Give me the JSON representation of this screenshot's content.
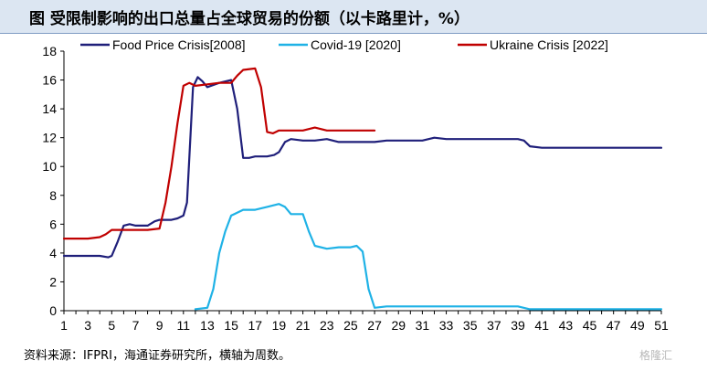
{
  "title": "图 受限制影响的出口总量占全球贸易的份额（以卡路里计，%）",
  "source": "资料来源：IFPRI，海通证券研究所，横轴为周数。",
  "watermark": "格隆汇",
  "chart_data": {
    "type": "line",
    "xlim": [
      1,
      51
    ],
    "ylim": [
      0,
      18
    ],
    "x_ticks": [
      1,
      3,
      5,
      7,
      9,
      11,
      13,
      15,
      17,
      19,
      21,
      23,
      25,
      27,
      29,
      31,
      33,
      35,
      37,
      39,
      41,
      43,
      45,
      47,
      49,
      51
    ],
    "y_ticks": [
      0,
      2,
      4,
      6,
      8,
      10,
      12,
      14,
      16,
      18
    ],
    "legend_position": "top",
    "grid": false,
    "series": [
      {
        "name": "Food Price Crisis[2008]",
        "color": "#1f1f7a",
        "points": [
          [
            1,
            3.8
          ],
          [
            2,
            3.8
          ],
          [
            3,
            3.8
          ],
          [
            4,
            3.8
          ],
          [
            4.7,
            3.7
          ],
          [
            5,
            3.8
          ],
          [
            5.5,
            4.8
          ],
          [
            6,
            5.9
          ],
          [
            6.5,
            6.0
          ],
          [
            7,
            5.9
          ],
          [
            8,
            5.9
          ],
          [
            8.6,
            6.2
          ],
          [
            9,
            6.3
          ],
          [
            10,
            6.3
          ],
          [
            10.5,
            6.4
          ],
          [
            11,
            6.6
          ],
          [
            11.3,
            7.5
          ],
          [
            11.8,
            15.5
          ],
          [
            12.2,
            16.2
          ],
          [
            12.6,
            15.9
          ],
          [
            13,
            15.5
          ],
          [
            14,
            15.8
          ],
          [
            15,
            16.0
          ],
          [
            15.5,
            14.0
          ],
          [
            16,
            10.6
          ],
          [
            16.5,
            10.6
          ],
          [
            17,
            10.7
          ],
          [
            18,
            10.7
          ],
          [
            18.6,
            10.8
          ],
          [
            19,
            11.0
          ],
          [
            19.5,
            11.7
          ],
          [
            20,
            11.9
          ],
          [
            21,
            11.8
          ],
          [
            22,
            11.8
          ],
          [
            23,
            11.9
          ],
          [
            24,
            11.7
          ],
          [
            25,
            11.7
          ],
          [
            26,
            11.7
          ],
          [
            27,
            11.7
          ],
          [
            28,
            11.8
          ],
          [
            29,
            11.8
          ],
          [
            30,
            11.8
          ],
          [
            31,
            11.8
          ],
          [
            32,
            12.0
          ],
          [
            33,
            11.9
          ],
          [
            34,
            11.9
          ],
          [
            35,
            11.9
          ],
          [
            36,
            11.9
          ],
          [
            37,
            11.9
          ],
          [
            38,
            11.9
          ],
          [
            39,
            11.9
          ],
          [
            39.5,
            11.8
          ],
          [
            40,
            11.4
          ],
          [
            41,
            11.3
          ],
          [
            42,
            11.3
          ],
          [
            43,
            11.3
          ],
          [
            44,
            11.3
          ],
          [
            45,
            11.3
          ],
          [
            46,
            11.3
          ],
          [
            47,
            11.3
          ],
          [
            48,
            11.3
          ],
          [
            49,
            11.3
          ],
          [
            50,
            11.3
          ],
          [
            51,
            11.3
          ]
        ]
      },
      {
        "name": "Covid-19 [2020]",
        "color": "#1fb2e6",
        "points": [
          [
            12,
            0.1
          ],
          [
            13,
            0.2
          ],
          [
            13.5,
            1.5
          ],
          [
            14,
            4.0
          ],
          [
            14.5,
            5.5
          ],
          [
            15,
            6.6
          ],
          [
            16,
            7.0
          ],
          [
            17,
            7.0
          ],
          [
            18,
            7.2
          ],
          [
            19,
            7.4
          ],
          [
            19.5,
            7.2
          ],
          [
            20,
            6.7
          ],
          [
            21,
            6.7
          ],
          [
            21.5,
            5.5
          ],
          [
            22,
            4.5
          ],
          [
            23,
            4.3
          ],
          [
            24,
            4.4
          ],
          [
            25,
            4.4
          ],
          [
            25.5,
            4.5
          ],
          [
            26,
            4.1
          ],
          [
            26.5,
            1.5
          ],
          [
            27,
            0.2
          ],
          [
            28,
            0.3
          ],
          [
            30,
            0.3
          ],
          [
            32,
            0.3
          ],
          [
            35,
            0.3
          ],
          [
            37,
            0.3
          ],
          [
            39,
            0.3
          ],
          [
            40,
            0.1
          ],
          [
            45,
            0.1
          ],
          [
            51,
            0.1
          ]
        ]
      },
      {
        "name": "Ukraine Crisis [2022]",
        "color": "#c00000",
        "points": [
          [
            1,
            5.0
          ],
          [
            2,
            5.0
          ],
          [
            3,
            5.0
          ],
          [
            4,
            5.1
          ],
          [
            4.5,
            5.3
          ],
          [
            5,
            5.6
          ],
          [
            6,
            5.6
          ],
          [
            7,
            5.6
          ],
          [
            8,
            5.6
          ],
          [
            9,
            5.7
          ],
          [
            9.5,
            7.5
          ],
          [
            10,
            10.0
          ],
          [
            10.5,
            13.0
          ],
          [
            11,
            15.6
          ],
          [
            11.5,
            15.8
          ],
          [
            12,
            15.6
          ],
          [
            13,
            15.7
          ],
          [
            14,
            15.8
          ],
          [
            15,
            15.8
          ],
          [
            15.5,
            16.3
          ],
          [
            16,
            16.7
          ],
          [
            17,
            16.8
          ],
          [
            17.5,
            15.5
          ],
          [
            18,
            12.4
          ],
          [
            18.5,
            12.3
          ],
          [
            19,
            12.5
          ],
          [
            20,
            12.5
          ],
          [
            21,
            12.5
          ],
          [
            22,
            12.7
          ],
          [
            23,
            12.5
          ],
          [
            24,
            12.5
          ],
          [
            25,
            12.5
          ],
          [
            26,
            12.5
          ],
          [
            27,
            12.5
          ]
        ]
      }
    ]
  }
}
